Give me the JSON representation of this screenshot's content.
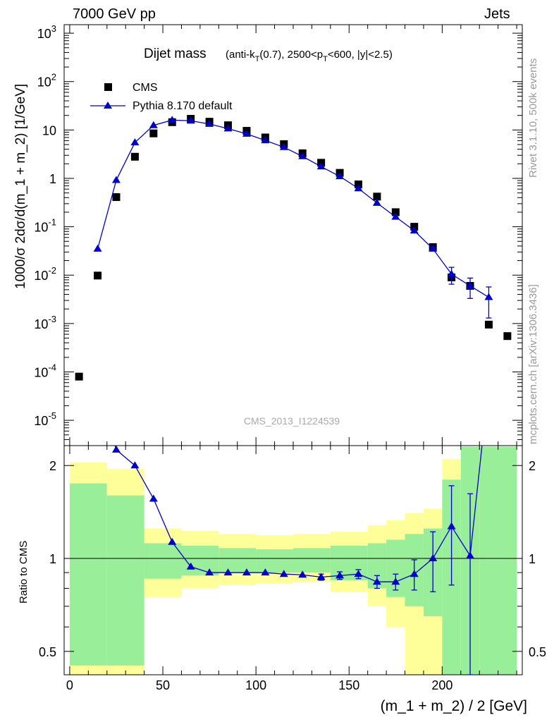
{
  "header": {
    "left": "7000 GeV pp",
    "right": "Jets"
  },
  "side_labels": {
    "version": "Rivet 3.1.10,  500k events",
    "source": "mcplots.cern.ch [arXiv:1306.3436]"
  },
  "watermark": "CMS_2013_I1224539",
  "colors": {
    "data": "#000000",
    "mc": "#0000cc",
    "band_inner": "#99ee99",
    "band_outer": "#ffff99"
  },
  "chart_data": [
    {
      "type": "scatter",
      "title": "Dijet mass",
      "subtitle": "(anti-k_T(0.7), 2500<p_T<600, |y|<2.5)",
      "ylabel": "1000/σ 2dσ/d(m_1 + m_2) [1/GeV]",
      "xlim": [
        -3,
        243
      ],
      "ylim": [
        3e-06,
        1500
      ],
      "yscale": "log",
      "ytick_labels": [
        "10^-5",
        "10^-4",
        "10^-3",
        "10^-2",
        "10^-1",
        "1",
        "10",
        "10^2",
        "10^3"
      ],
      "legend_position": "top-left",
      "series": [
        {
          "name": "CMS",
          "marker": "square",
          "x": [
            5,
            15,
            25,
            35,
            45,
            55,
            65,
            75,
            85,
            95,
            105,
            115,
            125,
            135,
            145,
            155,
            165,
            175,
            185,
            195,
            205,
            215,
            225,
            235
          ],
          "y": [
            8e-05,
            0.0098,
            0.41,
            2.8,
            8.5,
            14.5,
            17,
            14.8,
            12.5,
            9.6,
            7.0,
            5.1,
            3.3,
            2.1,
            1.3,
            0.75,
            0.42,
            0.2,
            0.1,
            0.038,
            0.009,
            0.006,
            0.00095,
            0.00055
          ]
        },
        {
          "name": "Pythia 8.170 default",
          "marker": "triangle",
          "x": [
            15,
            25,
            35,
            45,
            55,
            65,
            75,
            85,
            95,
            105,
            115,
            125,
            135,
            145,
            155,
            165,
            175,
            185,
            195,
            205,
            215,
            225
          ],
          "y": [
            0.035,
            0.92,
            5.5,
            12.5,
            16.0,
            15.5,
            13.3,
            10.7,
            8.3,
            6.1,
            4.4,
            2.85,
            1.75,
            1.1,
            0.62,
            0.31,
            0.16,
            0.083,
            0.035,
            0.0105,
            0.006,
            0.0035
          ],
          "yerr": [
            0,
            0,
            0,
            0,
            0,
            0,
            0,
            0,
            0,
            0,
            0,
            0,
            0,
            0,
            0,
            0,
            0,
            0,
            0.003,
            0.004,
            0.0027,
            0.0022
          ]
        }
      ]
    },
    {
      "type": "line",
      "ylabel": "Ratio to CMS",
      "xlabel": "(m_1 + m_2) / 2 [GeV]",
      "xlim": [
        -3,
        243
      ],
      "ylim": [
        0.42,
        2.32
      ],
      "yscale": "log",
      "xticks": [
        0,
        50,
        100,
        150,
        200
      ],
      "yticks_labeled": [
        0.5,
        1,
        2
      ],
      "reference_line": 1,
      "bands": {
        "edges": [
          0,
          20,
          40,
          60,
          80,
          100,
          120,
          140,
          160,
          170,
          180,
          190,
          200,
          210,
          220,
          240
        ],
        "inner_lo": [
          0.45,
          0.45,
          0.86,
          0.88,
          0.9,
          0.9,
          0.9,
          0.85,
          0.8,
          0.75,
          0.7,
          0.65,
          0.42,
          0.42,
          0.42
        ],
        "inner_hi": [
          1.75,
          1.6,
          1.12,
          1.1,
          1.08,
          1.07,
          1.08,
          1.1,
          1.12,
          1.15,
          1.2,
          1.25,
          1.8,
          2.3,
          2.3
        ],
        "outer_lo": [
          0.42,
          0.42,
          0.75,
          0.8,
          0.82,
          0.83,
          0.84,
          0.78,
          0.7,
          0.6,
          0.42,
          0.42,
          0.42,
          0.42,
          0.42
        ],
        "outer_hi": [
          2.05,
          1.95,
          1.25,
          1.23,
          1.2,
          1.19,
          1.2,
          1.22,
          1.28,
          1.33,
          1.4,
          1.45,
          2.1,
          2.3,
          2.3
        ]
      },
      "series": [
        {
          "name": "Pythia 8.170 default",
          "marker": "triangle",
          "x": [
            15,
            25,
            35,
            45,
            55,
            65,
            75,
            85,
            95,
            105,
            115,
            125,
            135,
            145,
            155,
            165,
            175,
            185,
            195,
            205,
            215,
            225
          ],
          "y": [
            3.6,
            2.25,
            2.0,
            1.56,
            1.13,
            0.94,
            0.9,
            0.9,
            0.9,
            0.9,
            0.89,
            0.885,
            0.87,
            0.88,
            0.89,
            0.84,
            0.84,
            0.89,
            1.0,
            1.27,
            1.02,
            3.7
          ],
          "yerr": [
            0,
            0,
            0,
            0,
            0,
            0,
            0,
            0,
            0,
            0,
            0,
            0,
            0.02,
            0.025,
            0.03,
            0.04,
            0.05,
            0.1,
            0.22,
            0.45,
            0.6,
            0
          ]
        }
      ]
    }
  ]
}
